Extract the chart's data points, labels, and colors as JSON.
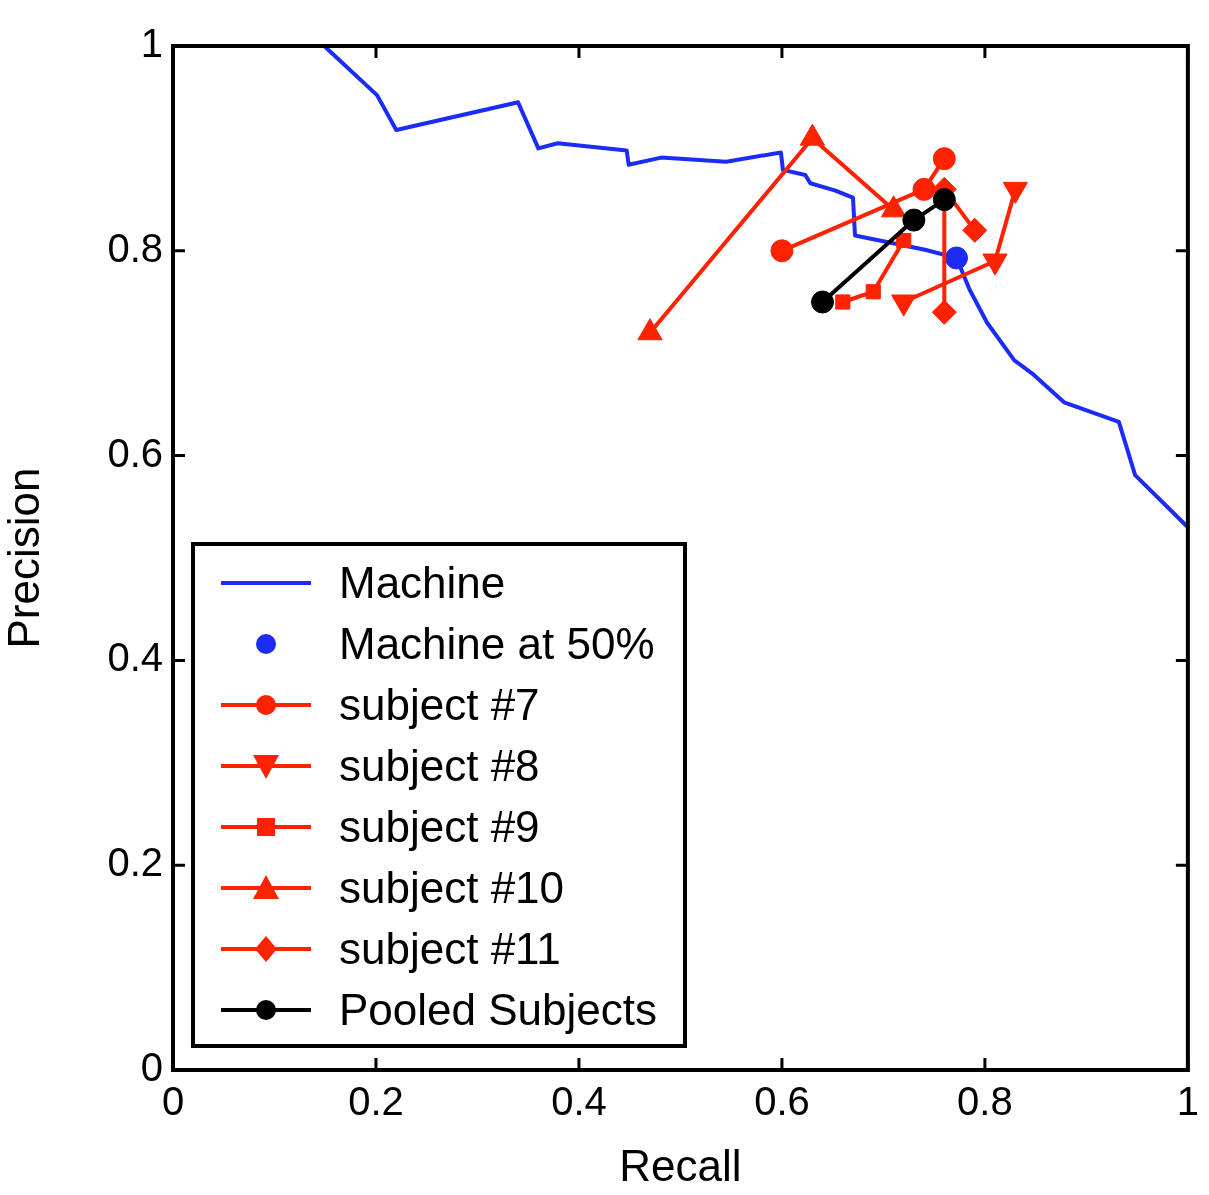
{
  "chart_data": {
    "type": "line",
    "xlabel": "Recall",
    "ylabel": "Precision",
    "xlim": [
      0,
      1
    ],
    "ylim": [
      0,
      1
    ],
    "xticks": [
      0,
      0.2,
      0.4,
      0.6,
      0.8,
      1
    ],
    "yticks": [
      0,
      0.2,
      0.4,
      0.6,
      0.8,
      1
    ],
    "grid": false,
    "legend": "bottom left",
    "series": [
      {
        "name": "Machine",
        "type": "line",
        "color": "#1a2cf5",
        "marker": "none",
        "x": [
          0.149,
          0.201,
          0.22,
          0.34,
          0.36,
          0.379,
          0.447,
          0.449,
          0.481,
          0.545,
          0.599,
          0.601,
          0.623,
          0.628,
          0.652,
          0.67,
          0.672,
          0.741,
          0.772,
          0.785,
          0.802,
          0.829,
          0.848,
          0.878,
          0.932,
          0.948,
          1.0
        ],
        "values": [
          1.0,
          0.952,
          0.918,
          0.945,
          0.9,
          0.905,
          0.898,
          0.884,
          0.891,
          0.887,
          0.896,
          0.879,
          0.874,
          0.866,
          0.859,
          0.852,
          0.815,
          0.801,
          0.793,
          0.762,
          0.73,
          0.693,
          0.679,
          0.652,
          0.633,
          0.581,
          0.53
        ]
      },
      {
        "name": "Machine at 50%",
        "type": "scatter",
        "color": "#1a2cf5",
        "marker": "circle",
        "x": [
          0.772
        ],
        "values": [
          0.793
        ]
      },
      {
        "name": "subject #7",
        "type": "line",
        "color": "#ff2200",
        "marker": "circle",
        "x": [
          0.6,
          0.74,
          0.76
        ],
        "values": [
          0.8,
          0.86,
          0.89
        ]
      },
      {
        "name": "subject #8",
        "type": "line",
        "color": "#ff2200",
        "marker": "triangle-down",
        "x": [
          0.72,
          0.81,
          0.83
        ],
        "values": [
          0.75,
          0.79,
          0.86
        ]
      },
      {
        "name": "subject #9",
        "type": "line",
        "color": "#ff2200",
        "marker": "square",
        "x": [
          0.66,
          0.69,
          0.72
        ],
        "values": [
          0.75,
          0.76,
          0.81
        ]
      },
      {
        "name": "subject #10",
        "type": "line",
        "color": "#ff2200",
        "marker": "triangle",
        "x": [
          0.47,
          0.63,
          0.71
        ],
        "values": [
          0.72,
          0.91,
          0.84
        ]
      },
      {
        "name": "subject #11",
        "type": "line",
        "color": "#ff2200",
        "marker": "diamond",
        "x": [
          0.79,
          0.76,
          0.76
        ],
        "values": [
          0.82,
          0.86,
          0.74
        ]
      },
      {
        "name": "Pooled Subjects",
        "type": "line",
        "color": "#000000",
        "marker": "circle",
        "x": [
          0.64,
          0.73,
          0.76
        ],
        "values": [
          0.75,
          0.83,
          0.85
        ]
      }
    ]
  }
}
